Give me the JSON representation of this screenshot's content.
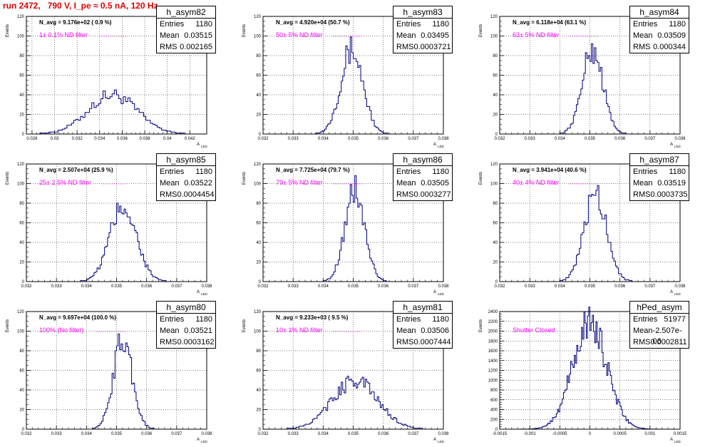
{
  "title": "run 2472,   790 V, I_pe ≈ 0.5 nA, 120 Hz",
  "ylabel": "Events",
  "xlabel": "A",
  "xlabel_sub": "LED",
  "colors": {
    "title": "#e00000",
    "annotation": "#ff00ff",
    "histogram": "#000080"
  },
  "chart_data": [
    {
      "type": "histogram",
      "name": "h_asym82",
      "navg": "N_avg = 9.176e+02 ( 0.9 %)",
      "filter": "1± 0.1% ND filter",
      "stats": {
        "entries": "1180",
        "mean": "0.03515",
        "rms": "0.002165"
      },
      "xlim": [
        0.0275,
        0.0435
      ],
      "ylim": [
        0,
        120
      ],
      "xticks": [
        "0.028",
        "0.03",
        "0.032",
        "0.034",
        "0.036",
        "0.038",
        "0.04",
        "0.042"
      ],
      "yticks": [
        "0",
        "20",
        "40",
        "60",
        "80",
        "100",
        "120"
      ],
      "bin_width": 0.0002,
      "mean": 0.03515,
      "rms": 0.002165,
      "peak": 40
    },
    {
      "type": "histogram",
      "name": "h_asym83",
      "navg": "N_avg = 4.920e+04 (50.7 %)",
      "filter": "50± 5% ND filter",
      "stats": {
        "entries": "1180",
        "mean": "0.03495",
        "rms": "0.0003721"
      },
      "xlim": [
        0.032,
        0.038
      ],
      "ylim": [
        0,
        120
      ],
      "xticks": [
        "0.032",
        "0.033",
        "0.034",
        "0.035",
        "0.036",
        "0.037",
        "0.038"
      ],
      "yticks": [
        "0",
        "20",
        "40",
        "60",
        "80",
        "100",
        "120"
      ],
      "bin_width": 5e-05,
      "mean": 0.03495,
      "rms": 0.0003721,
      "peak": 86
    },
    {
      "type": "histogram",
      "name": "h_asym84",
      "navg": "N_avg = 6.118e+04 (63.1 %)",
      "filter": "63± 5% ND filter",
      "stats": {
        "entries": "1180",
        "mean": "0.03509",
        "rms": "0.000344"
      },
      "xlim": [
        0.032,
        0.038
      ],
      "ylim": [
        0,
        120
      ],
      "xticks": [
        "0.032",
        "0.033",
        "0.034",
        "0.035",
        "0.036",
        "0.037",
        "0.038"
      ],
      "yticks": [
        "0",
        "20",
        "40",
        "60",
        "80",
        "100",
        "120"
      ],
      "bin_width": 5e-05,
      "mean": 0.03509,
      "rms": 0.000344,
      "peak": 86
    },
    {
      "type": "histogram",
      "name": "h_asym85",
      "navg": "N_avg = 2.507e+04 (25.9 %)",
      "filter": "25± 2.5% ND filter",
      "stats": {
        "entries": "1180",
        "mean": "0.03522",
        "rms": "0.0004454"
      },
      "xlim": [
        0.032,
        0.038
      ],
      "ylim": [
        0,
        120
      ],
      "xticks": [
        "0.032",
        "0.033",
        "0.034",
        "0.035",
        "0.036",
        "0.037",
        "0.038"
      ],
      "yticks": [
        "0",
        "20",
        "40",
        "60",
        "80",
        "100",
        "120"
      ],
      "bin_width": 5e-05,
      "mean": 0.03522,
      "rms": 0.0004454,
      "peak": 77
    },
    {
      "type": "histogram",
      "name": "h_asym86",
      "navg": "N_avg = 7.725e+04 (79.7 %)",
      "filter": "79± 5% ND filter",
      "stats": {
        "entries": "1180",
        "mean": "0.03505",
        "rms": "0.0003277"
      },
      "xlim": [
        0.032,
        0.038
      ],
      "ylim": [
        0,
        120
      ],
      "xticks": [
        "0.032",
        "0.033",
        "0.034",
        "0.035",
        "0.036",
        "0.037",
        "0.038"
      ],
      "yticks": [
        "0",
        "20",
        "40",
        "60",
        "80",
        "100",
        "120"
      ],
      "bin_width": 5e-05,
      "mean": 0.03505,
      "rms": 0.0003277,
      "peak": 93
    },
    {
      "type": "histogram",
      "name": "h_asym87",
      "navg": "N_avg = 3.941e+04 (40.6 %)",
      "filter": "40± 4% ND filter",
      "stats": {
        "entries": "1180",
        "mean": "0.03519",
        "rms": "0.0003735"
      },
      "xlim": [
        0.032,
        0.038
      ],
      "ylim": [
        0,
        120
      ],
      "xticks": [
        "0.032",
        "0.033",
        "0.034",
        "0.035",
        "0.036",
        "0.037",
        "0.038"
      ],
      "yticks": [
        "0",
        "20",
        "40",
        "60",
        "80",
        "100",
        "120"
      ],
      "bin_width": 5e-05,
      "mean": 0.03519,
      "rms": 0.0003735,
      "peak": 91
    },
    {
      "type": "histogram",
      "name": "h_asym80",
      "navg": "N_avg = 9.697e+04 (100.0 %)",
      "filter": "100% (No filter)",
      "stats": {
        "entries": "1180",
        "mean": "0.03521",
        "rms": "0.0003162"
      },
      "xlim": [
        0.032,
        0.038
      ],
      "ylim": [
        0,
        120
      ],
      "xticks": [
        "0.032",
        "0.033",
        "0.034",
        "0.035",
        "0.036",
        "0.037",
        "0.038"
      ],
      "yticks": [
        "0",
        "20",
        "40",
        "60",
        "80",
        "100",
        "120"
      ],
      "bin_width": 5e-05,
      "mean": 0.03521,
      "rms": 0.0003162,
      "peak": 91
    },
    {
      "type": "histogram",
      "name": "h_asym81",
      "navg": "N_avg = 9.233e+03 ( 9.5 %)",
      "filter": "10± 1% ND filter",
      "stats": {
        "entries": "1180",
        "mean": "0.03506",
        "rms": "0.0007444"
      },
      "xlim": [
        0.032,
        0.038
      ],
      "ylim": [
        0,
        120
      ],
      "xticks": [
        "0.032",
        "0.033",
        "0.034",
        "0.035",
        "0.036",
        "0.037",
        "0.038"
      ],
      "yticks": [
        "0",
        "20",
        "40",
        "60",
        "80",
        "100",
        "120"
      ],
      "bin_width": 5e-05,
      "mean": 0.03506,
      "rms": 0.0007444,
      "peak": 50
    },
    {
      "type": "histogram",
      "name": "hPed_asym",
      "navg": "",
      "filter": "Shutter Closed",
      "stats": {
        "entries": "51977",
        "mean": "-2.507e-06",
        "rms": "0.0002811"
      },
      "xlim": [
        -0.0015,
        0.0015
      ],
      "ylim": [
        0,
        2400
      ],
      "xticks": [
        "-0.0015",
        "-0.001",
        "-0.0005",
        "0",
        "0.0005",
        "0.001",
        "0.0015"
      ],
      "yticks": [
        "0",
        "200",
        "400",
        "600",
        "800",
        "1000",
        "1200",
        "1400",
        "1600",
        "1800",
        "2000",
        "2200",
        "2400"
      ],
      "bin_width": 2e-05,
      "mean": -2.5e-06,
      "rms": 0.0002811,
      "peak": 2180
    }
  ]
}
